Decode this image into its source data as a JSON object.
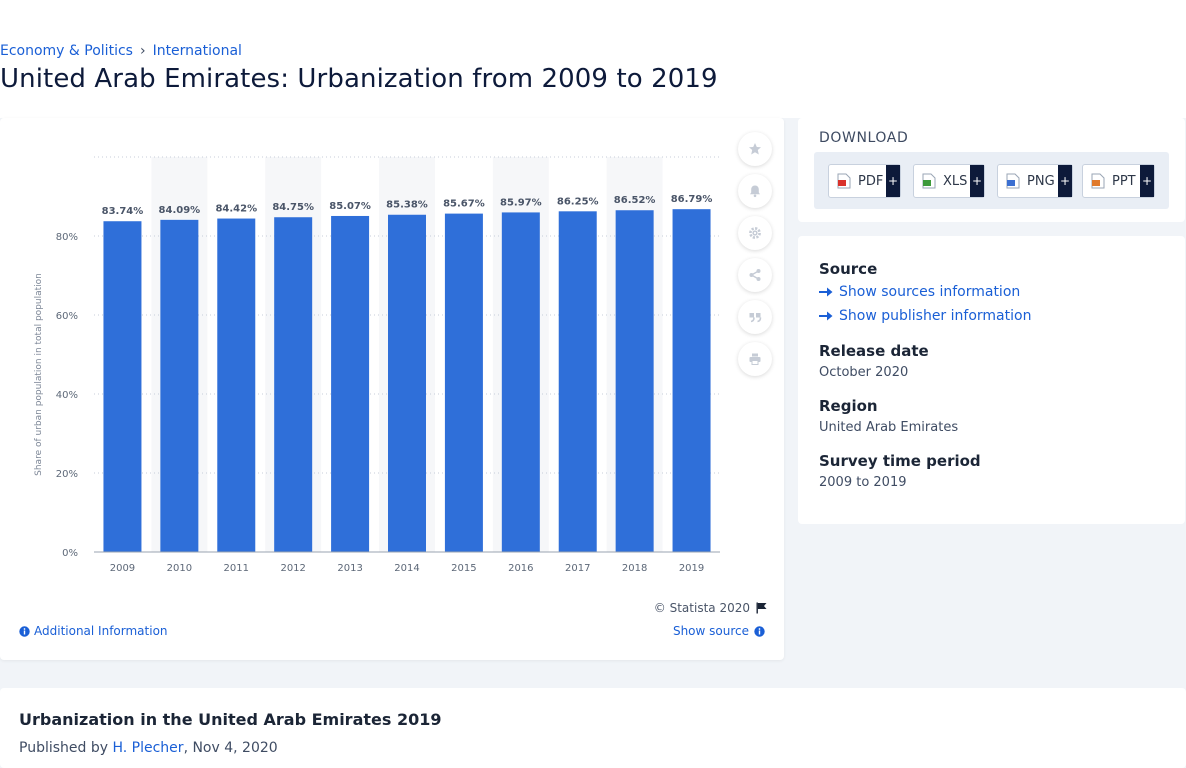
{
  "breadcrumb": {
    "item1": "Economy & Politics",
    "separator": "›",
    "item2": "International"
  },
  "page_title": "United Arab Emirates: Urbanization from 2009 to 2019",
  "chart_data": {
    "type": "bar",
    "categories": [
      "2009",
      "2010",
      "2011",
      "2012",
      "2013",
      "2014",
      "2015",
      "2016",
      "2017",
      "2018",
      "2019"
    ],
    "values": [
      83.74,
      84.09,
      84.42,
      84.75,
      85.07,
      85.38,
      85.67,
      85.97,
      86.25,
      86.52,
      86.79
    ],
    "value_labels": [
      "83.74%",
      "84.09%",
      "84.42%",
      "84.75%",
      "85.07%",
      "85.38%",
      "85.67%",
      "85.97%",
      "86.25%",
      "86.52%",
      "86.79%"
    ],
    "title": "",
    "xlabel": "",
    "ylabel": "Share of urban population in total population",
    "ylim": [
      0,
      100
    ],
    "yticks": [
      0,
      20,
      40,
      60,
      80
    ],
    "ytick_labels": [
      "0%",
      "20%",
      "40%",
      "60%",
      "80%"
    ],
    "grid": true,
    "bar_color": "#2f6fd9"
  },
  "chart_footer": {
    "copyright": "© Statista 2020",
    "additional_info": "Additional Information",
    "show_source": "Show source"
  },
  "tools": [
    "star-icon",
    "bell-icon",
    "gear-icon",
    "share-icon",
    "quote-icon",
    "print-icon"
  ],
  "download": {
    "title": "DOWNLOAD",
    "buttons": [
      {
        "label": "PDF",
        "plus": "+",
        "color": "#d9322b"
      },
      {
        "label": "XLS",
        "plus": "+",
        "color": "#3d9a3a"
      },
      {
        "label": "PNG",
        "plus": "+",
        "color": "#3b6fd1"
      },
      {
        "label": "PPT",
        "plus": "+",
        "color": "#e07a2c"
      }
    ]
  },
  "info": {
    "source_label": "Source",
    "show_sources": "Show sources information",
    "show_publisher": "Show publisher information",
    "release_label": "Release date",
    "release_value": "October 2020",
    "region_label": "Region",
    "region_value": "United Arab Emirates",
    "survey_label": "Survey time period",
    "survey_value": "2009 to 2019"
  },
  "bottom": {
    "title": "Urbanization in the United Arab Emirates 2019",
    "published_prefix": "Published by",
    "author": "H. Plecher",
    "date": ", Nov 4, 2020"
  }
}
